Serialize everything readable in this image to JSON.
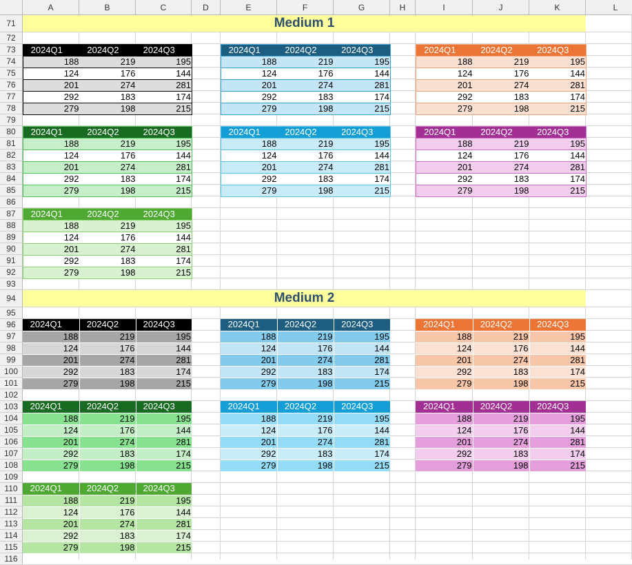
{
  "columns": [
    "A",
    "B",
    "C",
    "D",
    "E",
    "F",
    "G",
    "H",
    "I",
    "J",
    "K",
    "L"
  ],
  "column_edges": [
    33,
    115,
    197,
    278,
    320,
    402,
    484,
    566,
    603,
    686,
    768,
    850,
    917
  ],
  "rows": [
    71,
    72,
    73,
    74,
    75,
    76,
    77,
    78,
    79,
    80,
    81,
    82,
    83,
    84,
    85,
    86,
    87,
    88,
    89,
    90,
    91,
    92,
    93,
    94,
    95,
    96,
    97,
    98,
    99,
    100,
    101,
    102,
    103,
    104,
    105,
    106,
    107,
    108,
    109,
    110,
    111,
    112,
    113,
    114,
    115,
    116
  ],
  "sections": [
    {
      "title": "Medium 1",
      "row": 71
    },
    {
      "title": "Medium 2",
      "row": 94
    }
  ],
  "table_headers": [
    "2024Q1",
    "2024Q2",
    "2024Q3"
  ],
  "table_values": [
    [
      188,
      219,
      195
    ],
    [
      124,
      176,
      144
    ],
    [
      201,
      274,
      281
    ],
    [
      292,
      183,
      174
    ],
    [
      279,
      198,
      215
    ]
  ],
  "tables": [
    {
      "id": "m1-black",
      "style": "medium1",
      "col": 0,
      "row": 73,
      "header_bg": "#000000",
      "band_bg": "#dddddd",
      "plain_bg": "#ffffff",
      "border": "#000000"
    },
    {
      "id": "m1-darkblue",
      "style": "medium1",
      "col": 4,
      "row": 73,
      "header_bg": "#1d5d80",
      "band_bg": "#c3e5f5",
      "plain_bg": "#ffffff",
      "border": "#3aa0d4"
    },
    {
      "id": "m1-orange",
      "style": "medium1",
      "col": 8,
      "row": 73,
      "header_bg": "#ec7434",
      "band_bg": "#fbe0d2",
      "plain_bg": "#ffffff",
      "border": "#f1a47c"
    },
    {
      "id": "m1-darkgreen",
      "style": "medium1",
      "col": 0,
      "row": 80,
      "header_bg": "#1a6b22",
      "band_bg": "#c6eec8",
      "plain_bg": "#ffffff",
      "border": "#4cc055"
    },
    {
      "id": "m1-cyan",
      "style": "medium1",
      "col": 4,
      "row": 80,
      "header_bg": "#139fd6",
      "band_bg": "#c9ebf8",
      "plain_bg": "#ffffff",
      "border": "#5bc3ea"
    },
    {
      "id": "m1-purple",
      "style": "medium1",
      "col": 8,
      "row": 80,
      "header_bg": "#a22f94",
      "band_bg": "#f3cdee",
      "plain_bg": "#ffffff",
      "border": "#d06cc6"
    },
    {
      "id": "m1-green",
      "style": "medium1",
      "col": 0,
      "row": 87,
      "header_bg": "#4ea832",
      "band_bg": "#d8f1d0",
      "plain_bg": "#ffffff",
      "border": "#86d36c"
    },
    {
      "id": "m2-black",
      "style": "medium2",
      "col": 0,
      "row": 96,
      "header_bg": "#000000",
      "band_bg": "#a6a6a6",
      "plain_bg": "#d6d6d6",
      "border": "#ffffff"
    },
    {
      "id": "m2-darkblue",
      "style": "medium2",
      "col": 4,
      "row": 96,
      "header_bg": "#1d5d80",
      "band_bg": "#82cbec",
      "plain_bg": "#c2e5f5",
      "border": "#ffffff"
    },
    {
      "id": "m2-orange",
      "style": "medium2",
      "col": 8,
      "row": 96,
      "header_bg": "#ec7434",
      "band_bg": "#f7c5a8",
      "plain_bg": "#fbe1d3",
      "border": "#ffffff"
    },
    {
      "id": "m2-darkgreen",
      "style": "medium2",
      "col": 0,
      "row": 103,
      "header_bg": "#1a6b22",
      "band_bg": "#86e28e",
      "plain_bg": "#c4efc6",
      "border": "#ffffff"
    },
    {
      "id": "m2-cyan",
      "style": "medium2",
      "col": 4,
      "row": 103,
      "header_bg": "#139fd6",
      "band_bg": "#94dbf5",
      "plain_bg": "#c9ecf9",
      "border": "#ffffff"
    },
    {
      "id": "m2-purple",
      "style": "medium2",
      "col": 8,
      "row": 103,
      "header_bg": "#a22f94",
      "band_bg": "#e39edb",
      "plain_bg": "#f2cdee",
      "border": "#ffffff"
    },
    {
      "id": "m2-green",
      "style": "medium2",
      "col": 0,
      "row": 110,
      "header_bg": "#4ea832",
      "band_bg": "#b5e5a3",
      "plain_bg": "#dbf2d2",
      "border": "#ffffff"
    }
  ]
}
